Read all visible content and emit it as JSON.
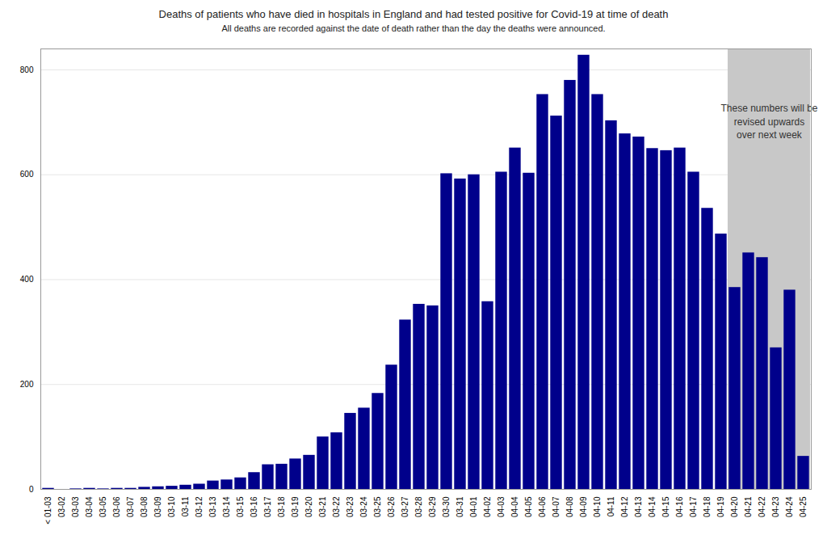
{
  "chart_data": {
    "type": "bar",
    "title": "Deaths of patients who have died in hospitals in England and had tested positive for Covid-19 at time of death",
    "subtitle": "All deaths are recorded against the date of death rather than the day the deaths were announced.",
    "categories": [
      "< 01-03",
      "03-02",
      "03-03",
      "03-04",
      "03-05",
      "03-06",
      "03-07",
      "03-08",
      "03-09",
      "03-10",
      "03-11",
      "03-12",
      "03-13",
      "03-14",
      "03-15",
      "03-16",
      "03-17",
      "03-18",
      "03-19",
      "03-20",
      "03-21",
      "03-22",
      "03-23",
      "03-24",
      "03-25",
      "03-26",
      "03-27",
      "03-28",
      "03-29",
      "03-30",
      "03-31",
      "04-01",
      "04-02",
      "04-03",
      "04-04",
      "04-05",
      "04-06",
      "04-07",
      "04-08",
      "04-09",
      "04-10",
      "04-11",
      "04-12",
      "04-13",
      "04-14",
      "04-15",
      "04-16",
      "04-17",
      "04-18",
      "04-19",
      "04-20",
      "04-21",
      "04-22",
      "04-23",
      "04-24",
      "04-25"
    ],
    "values": [
      2,
      0,
      1,
      2,
      1,
      2,
      2,
      4,
      5,
      6,
      8,
      10,
      16,
      18,
      22,
      32,
      47,
      48,
      58,
      65,
      100,
      108,
      145,
      155,
      183,
      237,
      323,
      353,
      350,
      602,
      592,
      600,
      358,
      605,
      651,
      603,
      753,
      712,
      780,
      828,
      753,
      703,
      678,
      672,
      650,
      646,
      651,
      605,
      536,
      487,
      385,
      451,
      442,
      270,
      380,
      63
    ],
    "color": "#00008B",
    "ylim": [
      0,
      840
    ],
    "yticks": [
      0,
      200,
      400,
      600,
      800
    ],
    "grid": true,
    "annotation": {
      "text": "These numbers will be\nrevised upwards\nover next week",
      "span": [
        "04-20",
        "04-25"
      ],
      "color": "#C8C8C8"
    }
  }
}
